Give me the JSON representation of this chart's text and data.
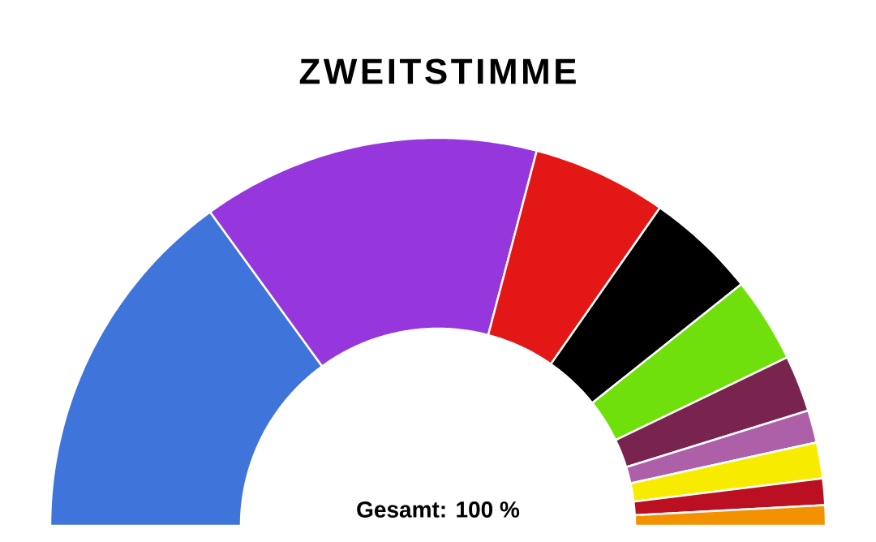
{
  "chart_data": {
    "type": "donut",
    "title": "ZWEITSTIMME",
    "categories": [
      null,
      null,
      null,
      null,
      null,
      null,
      null,
      null,
      null,
      null
    ],
    "values": [
      30,
      28.2,
      11.2,
      9.2,
      7.1,
      4.7,
      2.7,
      3.0,
      2.2,
      1.7
    ],
    "colors": [
      "#3f74db",
      "#9537dc",
      "#e31716",
      "#000000",
      "#6fe00c",
      "#79244e",
      "#ad5fa7",
      "#f7ec00",
      "#bb0f22",
      "#f39200"
    ],
    "annotations": [
      "Gesamt: 100 %"
    ]
  }
}
